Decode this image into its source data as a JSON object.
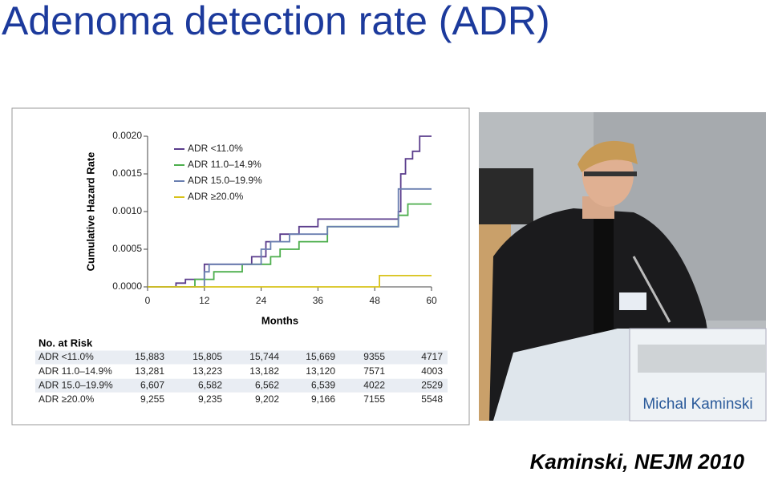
{
  "slide_title": "Adenoma detection rate (ADR)",
  "citation": "Kaminski, NEJM 2010",
  "photo": {
    "podium_name": "Michal Kaminski"
  },
  "chart_data": {
    "type": "line",
    "step": true,
    "ylabel": "Cumulative Hazard Rate",
    "xlabel": "Months",
    "xlim": [
      0,
      60
    ],
    "xticks": [
      0,
      12,
      24,
      36,
      48,
      60
    ],
    "ylim": [
      0,
      0.002
    ],
    "yticks": [
      {
        "value": 0,
        "label": "0.0000"
      },
      {
        "value": 0.0005,
        "label": "0.0005"
      },
      {
        "value": 0.001,
        "label": "0.0010"
      },
      {
        "value": 0.0015,
        "label": "0.0015"
      },
      {
        "value": 0.002,
        "label": "0.0020"
      }
    ],
    "series": [
      {
        "name": "ADR <11.0%",
        "color": "#5a3c8c",
        "x": [
          0,
          6,
          8,
          12,
          18,
          22,
          25,
          28,
          32,
          36,
          40,
          53,
          53.5,
          54.5,
          56,
          57.5,
          60
        ],
        "values": [
          0,
          5e-05,
          0.0001,
          0.0003,
          0.0003,
          0.0004,
          0.0006,
          0.0007,
          0.0008,
          0.0009,
          0.0009,
          0.001,
          0.0015,
          0.0017,
          0.0018,
          0.002,
          0.002
        ]
      },
      {
        "name": "ADR 11.0–14.9%",
        "color": "#4cae4c",
        "x": [
          0,
          10,
          14,
          20,
          26,
          28,
          32,
          38,
          53,
          55,
          60
        ],
        "values": [
          0,
          0.0001,
          0.0002,
          0.0003,
          0.0004,
          0.0005,
          0.0006,
          0.0008,
          0.00095,
          0.0011,
          0.0011
        ]
      },
      {
        "name": "ADR 15.0–19.9%",
        "color": "#6a7fb0",
        "x": [
          0,
          12,
          13,
          24,
          26,
          30,
          38,
          53,
          60
        ],
        "values": [
          0,
          0.0002,
          0.0003,
          0.0005,
          0.0006,
          0.0007,
          0.0008,
          0.0013,
          0.0013
        ]
      },
      {
        "name": "ADR ≥20.0%",
        "color": "#d8c21a",
        "x": [
          0,
          49,
          60
        ],
        "values": [
          0,
          0.00015,
          0.00015
        ]
      }
    ],
    "risk_table": {
      "title": "No. at Risk",
      "rows": [
        [
          "ADR <11.0%",
          "15,883",
          "15,805",
          "15,744",
          "15,669",
          "9355",
          "4717"
        ],
        [
          "ADR 11.0–14.9%",
          "13,281",
          "13,223",
          "13,182",
          "13,120",
          "7571",
          "4003"
        ],
        [
          "ADR 15.0–19.9%",
          "6,607",
          "6,582",
          "6,562",
          "6,539",
          "4022",
          "2529"
        ],
        [
          "ADR ≥20.0%",
          "9,255",
          "9,235",
          "9,202",
          "9,166",
          "7155",
          "5548"
        ]
      ]
    }
  }
}
